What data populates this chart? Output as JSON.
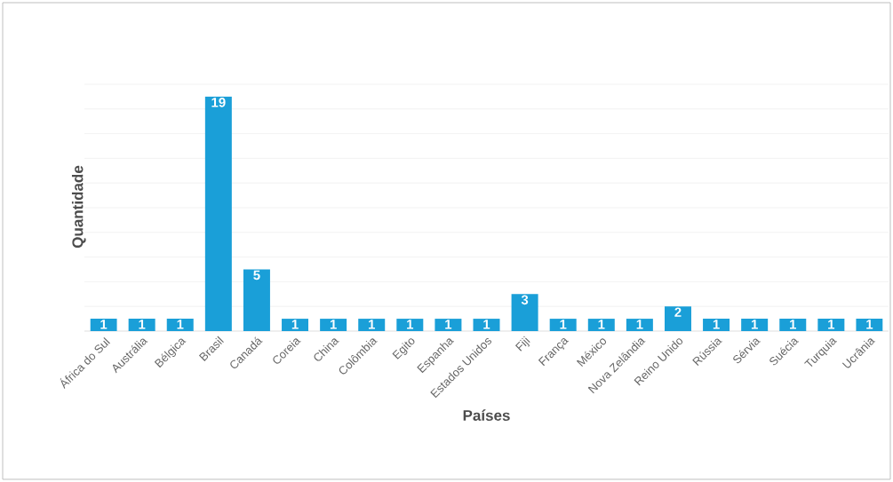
{
  "chart_data": {
    "type": "bar",
    "xlabel": "Países",
    "ylabel": "Quantidade",
    "categories": [
      "África do Sul",
      "Austrália",
      "Bélgica",
      "Brasil",
      "Canadá",
      "Coreia",
      "China",
      "Colômbia",
      "Egito",
      "Espanha",
      "Estados Unidos",
      "Fiji",
      "França",
      "México",
      "Nova Zelândia",
      "Reino Unido",
      "Rússia",
      "Sérvia",
      "Suécia",
      "Turquia",
      "Ucrânia"
    ],
    "values": [
      1,
      1,
      1,
      19,
      5,
      1,
      1,
      1,
      1,
      1,
      1,
      3,
      1,
      1,
      1,
      2,
      1,
      1,
      1,
      1,
      1
    ],
    "color": "#1a9fd8",
    "data_labels": true,
    "grid": "y",
    "tick_labels": "x"
  }
}
